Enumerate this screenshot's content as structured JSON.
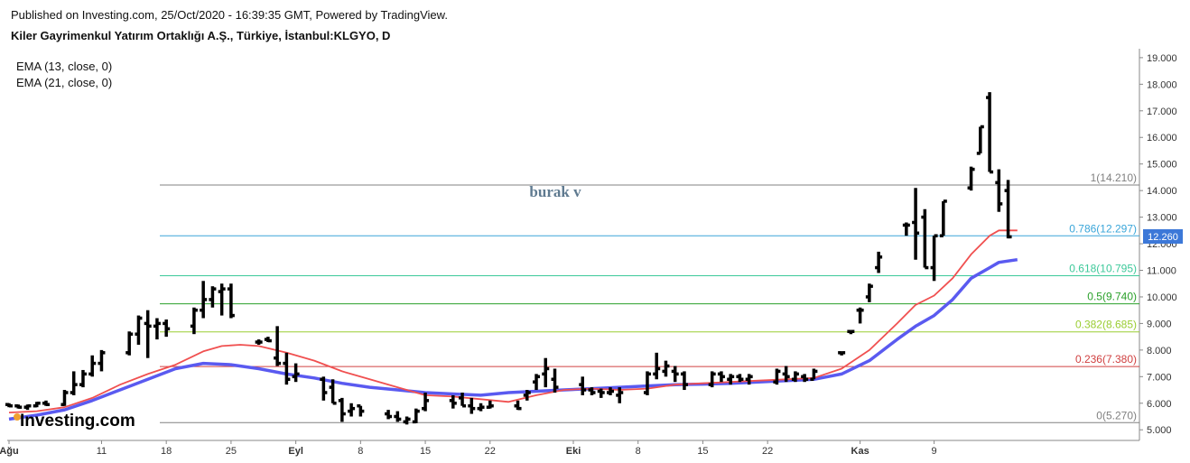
{
  "header": {
    "published": "Published on Investing.com, 25/Oct/2020 - 16:39:35 GMT, Powered by TradingView.",
    "title": "Kiler Gayrimenkul Yatırım Ortaklığı A.Ş., Türkiye, İstanbul:KLGYO, D"
  },
  "indicators": [
    "EMA (13, close, 0)",
    "EMA (21, close, 0)"
  ],
  "annotation": "burak v",
  "logo": "Investing.com",
  "last_price_label": "12.260",
  "colors": {
    "bars": "#000000",
    "ema13": "#f05050",
    "ema21": "#5a5af0",
    "price_tag": "#3c78d8",
    "fib_1": "#808080",
    "fib_0786": "#3aa6d9",
    "fib_0618": "#3dc99a",
    "fib_05": "#2aa02a",
    "fib_0382": "#9acd32",
    "fib_0236": "#d04040",
    "fib_0": "#808080"
  },
  "chart_data": {
    "type": "ohlc",
    "y_axis": {
      "min": 4.6,
      "max": 19.2,
      "ticks": [
        "5.000",
        "6.000",
        "7.000",
        "8.000",
        "9.000",
        "10.000",
        "11.000",
        "12.000",
        "13.000",
        "14.000",
        "15.000",
        "16.000",
        "17.000",
        "18.000",
        "19.000"
      ]
    },
    "x_axis_labels": [
      {
        "label": "Ağu",
        "bold": true,
        "day": 0
      },
      {
        "label": "11",
        "bold": false,
        "day": 10
      },
      {
        "label": "18",
        "bold": false,
        "day": 17
      },
      {
        "label": "25",
        "bold": false,
        "day": 24
      },
      {
        "label": "Eyl",
        "bold": true,
        "day": 31
      },
      {
        "label": "8",
        "bold": false,
        "day": 38
      },
      {
        "label": "15",
        "bold": false,
        "day": 45
      },
      {
        "label": "22",
        "bold": false,
        "day": 52
      },
      {
        "label": "Eki",
        "bold": true,
        "day": 61
      },
      {
        "label": "8",
        "bold": false,
        "day": 68
      },
      {
        "label": "15",
        "bold": false,
        "day": 75
      },
      {
        "label": "22",
        "bold": false,
        "day": 82
      },
      {
        "label": "Kas",
        "bold": true,
        "day": 92
      },
      {
        "label": "9",
        "bold": false,
        "day": 100
      }
    ],
    "fib_levels": [
      {
        "ratio": "1",
        "value": 14.21,
        "label": "1(14.210)",
        "color_key": "fib_1"
      },
      {
        "ratio": "0.786",
        "value": 12.297,
        "label": "0.786(12.297)",
        "color_key": "fib_0786"
      },
      {
        "ratio": "0.618",
        "value": 10.795,
        "label": "0.618(10.795)",
        "color_key": "fib_0618"
      },
      {
        "ratio": "0.5",
        "value": 9.74,
        "label": "0.5(9.740)",
        "color_key": "fib_05"
      },
      {
        "ratio": "0.382",
        "value": 8.685,
        "label": "0.382(8.685)",
        "color_key": "fib_0382"
      },
      {
        "ratio": "0.236",
        "value": 7.38,
        "label": "0.236(7.380)",
        "color_key": "fib_0236"
      },
      {
        "ratio": "0",
        "value": 5.27,
        "label": "0(5.270)",
        "color_key": "fib_0"
      }
    ],
    "bars": [
      {
        "day": 0,
        "o": 5.95,
        "h": 6.0,
        "l": 5.85,
        "c": 5.9
      },
      {
        "day": 1,
        "o": 5.9,
        "h": 5.95,
        "l": 5.8,
        "c": 5.85
      },
      {
        "day": 2,
        "o": 5.85,
        "h": 5.95,
        "l": 5.75,
        "c": 5.9
      },
      {
        "day": 3,
        "o": 5.9,
        "h": 6.05,
        "l": 5.85,
        "c": 6.0
      },
      {
        "day": 4,
        "o": 6.0,
        "h": 6.1,
        "l": 5.9,
        "c": 5.95
      },
      {
        "day": 6,
        "o": 5.95,
        "h": 6.5,
        "l": 5.9,
        "c": 6.4
      },
      {
        "day": 7,
        "o": 6.4,
        "h": 7.2,
        "l": 6.3,
        "c": 6.7
      },
      {
        "day": 8,
        "o": 6.7,
        "h": 7.25,
        "l": 6.6,
        "c": 7.1
      },
      {
        "day": 9,
        "o": 7.1,
        "h": 7.8,
        "l": 7.0,
        "c": 7.5
      },
      {
        "day": 10,
        "o": 7.5,
        "h": 8.0,
        "l": 7.2,
        "c": 7.9
      },
      {
        "day": 13,
        "o": 7.9,
        "h": 8.7,
        "l": 7.8,
        "c": 8.6
      },
      {
        "day": 14,
        "o": 8.6,
        "h": 9.3,
        "l": 8.2,
        "c": 9.2
      },
      {
        "day": 15,
        "o": 9.0,
        "h": 9.5,
        "l": 7.7,
        "c": 8.9
      },
      {
        "day": 16,
        "o": 8.9,
        "h": 9.2,
        "l": 8.4,
        "c": 9.0
      },
      {
        "day": 17,
        "o": 9.0,
        "h": 9.15,
        "l": 8.5,
        "c": 8.8
      },
      {
        "day": 20,
        "o": 8.9,
        "h": 9.6,
        "l": 8.6,
        "c": 9.5
      },
      {
        "day": 21,
        "o": 9.5,
        "h": 10.6,
        "l": 9.2,
        "c": 9.9
      },
      {
        "day": 22,
        "o": 9.9,
        "h": 10.4,
        "l": 9.6,
        "c": 10.3
      },
      {
        "day": 23,
        "o": 10.2,
        "h": 10.5,
        "l": 9.3,
        "c": 10.3
      },
      {
        "day": 24,
        "o": 10.3,
        "h": 10.5,
        "l": 9.2,
        "c": 9.3
      },
      {
        "day": 27,
        "o": 8.3,
        "h": 8.4,
        "l": 8.2,
        "c": 8.3
      },
      {
        "day": 28,
        "o": 8.4,
        "h": 8.5,
        "l": 8.3,
        "c": 8.35
      },
      {
        "day": 29,
        "o": 7.7,
        "h": 8.9,
        "l": 7.4,
        "c": 7.5
      },
      {
        "day": 30,
        "o": 7.5,
        "h": 7.9,
        "l": 6.7,
        "c": 6.9
      },
      {
        "day": 31,
        "o": 7.0,
        "h": 7.5,
        "l": 6.8,
        "c": 7.1
      },
      {
        "day": 34,
        "o": 6.9,
        "h": 7.0,
        "l": 6.1,
        "c": 6.4
      },
      {
        "day": 35,
        "o": 6.6,
        "h": 6.9,
        "l": 6.0,
        "c": 6.0
      },
      {
        "day": 36,
        "o": 6.1,
        "h": 6.2,
        "l": 5.3,
        "c": 5.6
      },
      {
        "day": 37,
        "o": 5.7,
        "h": 6.0,
        "l": 5.5,
        "c": 5.8
      },
      {
        "day": 38,
        "o": 5.9,
        "h": 5.9,
        "l": 5.5,
        "c": 5.7
      },
      {
        "day": 41,
        "o": 5.6,
        "h": 5.75,
        "l": 5.4,
        "c": 5.5
      },
      {
        "day": 42,
        "o": 5.5,
        "h": 5.7,
        "l": 5.3,
        "c": 5.4
      },
      {
        "day": 43,
        "o": 5.3,
        "h": 5.5,
        "l": 5.2,
        "c": 5.4
      },
      {
        "day": 44,
        "o": 5.3,
        "h": 5.8,
        "l": 5.25,
        "c": 5.7
      },
      {
        "day": 45,
        "o": 5.8,
        "h": 6.4,
        "l": 5.7,
        "c": 6.1
      },
      {
        "day": 48,
        "o": 6.1,
        "h": 6.3,
        "l": 5.8,
        "c": 6.0
      },
      {
        "day": 49,
        "o": 6.2,
        "h": 6.4,
        "l": 5.9,
        "c": 5.9
      },
      {
        "day": 50,
        "o": 5.9,
        "h": 6.2,
        "l": 5.6,
        "c": 5.8
      },
      {
        "day": 51,
        "o": 5.8,
        "h": 6.0,
        "l": 5.7,
        "c": 5.85
      },
      {
        "day": 52,
        "o": 5.85,
        "h": 6.1,
        "l": 5.8,
        "c": 5.9
      },
      {
        "day": 55,
        "o": 5.9,
        "h": 6.1,
        "l": 5.75,
        "c": 5.8
      },
      {
        "day": 56,
        "o": 6.3,
        "h": 6.5,
        "l": 6.1,
        "c": 6.4
      },
      {
        "day": 57,
        "o": 6.8,
        "h": 7.1,
        "l": 6.5,
        "c": 7.0
      },
      {
        "day": 58,
        "o": 7.1,
        "h": 7.7,
        "l": 6.6,
        "c": 7.3
      },
      {
        "day": 59,
        "o": 6.9,
        "h": 7.3,
        "l": 6.4,
        "c": 6.6
      },
      {
        "day": 62,
        "o": 6.7,
        "h": 7.0,
        "l": 6.3,
        "c": 6.5
      },
      {
        "day": 63,
        "o": 6.5,
        "h": 6.6,
        "l": 6.3,
        "c": 6.4
      },
      {
        "day": 64,
        "o": 6.45,
        "h": 6.55,
        "l": 6.2,
        "c": 6.4
      },
      {
        "day": 65,
        "o": 6.4,
        "h": 6.6,
        "l": 6.3,
        "c": 6.45
      },
      {
        "day": 66,
        "o": 6.3,
        "h": 6.6,
        "l": 6.0,
        "c": 6.4
      },
      {
        "day": 69,
        "o": 6.4,
        "h": 7.2,
        "l": 6.3,
        "c": 7.1
      },
      {
        "day": 70,
        "o": 7.1,
        "h": 7.9,
        "l": 6.9,
        "c": 7.3
      },
      {
        "day": 71,
        "o": 7.2,
        "h": 7.6,
        "l": 7.0,
        "c": 7.4
      },
      {
        "day": 72,
        "o": 7.2,
        "h": 7.4,
        "l": 6.8,
        "c": 7.1
      },
      {
        "day": 73,
        "o": 7.1,
        "h": 7.2,
        "l": 6.5,
        "c": 6.7
      },
      {
        "day": 76,
        "o": 6.7,
        "h": 7.2,
        "l": 6.6,
        "c": 7.1
      },
      {
        "day": 77,
        "o": 7.1,
        "h": 7.2,
        "l": 6.8,
        "c": 7.0
      },
      {
        "day": 78,
        "o": 6.9,
        "h": 7.1,
        "l": 6.7,
        "c": 7.0
      },
      {
        "day": 79,
        "o": 7.0,
        "h": 7.1,
        "l": 6.8,
        "c": 6.9
      },
      {
        "day": 80,
        "o": 6.9,
        "h": 7.1,
        "l": 6.7,
        "c": 7.0
      },
      {
        "day": 83,
        "o": 6.8,
        "h": 7.3,
        "l": 6.7,
        "c": 7.2
      },
      {
        "day": 84,
        "o": 7.1,
        "h": 7.4,
        "l": 6.8,
        "c": 7.0
      },
      {
        "day": 85,
        "o": 6.9,
        "h": 7.2,
        "l": 6.8,
        "c": 7.1
      },
      {
        "day": 86,
        "o": 7.0,
        "h": 7.1,
        "l": 6.8,
        "c": 6.9
      },
      {
        "day": 87,
        "o": 6.9,
        "h": 7.3,
        "l": 6.9,
        "c": 7.2
      },
      {
        "day": 90,
        "o": 7.9,
        "h": 7.9,
        "l": 7.9,
        "c": 7.9
      },
      {
        "day": 91,
        "o": 8.7,
        "h": 8.7,
        "l": 8.7,
        "c": 8.7
      },
      {
        "day": 92,
        "o": 9.5,
        "h": 9.6,
        "l": 9.0,
        "c": 9.5
      },
      {
        "day": 93,
        "o": 10.0,
        "h": 10.5,
        "l": 9.8,
        "c": 10.4
      },
      {
        "day": 94,
        "o": 11.1,
        "h": 11.7,
        "l": 10.9,
        "c": 11.5
      },
      {
        "day": 97,
        "o": 12.7,
        "h": 12.8,
        "l": 12.3,
        "c": 12.7
      },
      {
        "day": 98,
        "o": 12.8,
        "h": 14.1,
        "l": 11.4,
        "c": 12.4
      },
      {
        "day": 99,
        "o": 13.0,
        "h": 13.3,
        "l": 11.1,
        "c": 11.1
      },
      {
        "day": 100,
        "o": 11.1,
        "h": 12.3,
        "l": 10.6,
        "c": 12.3
      },
      {
        "day": 101,
        "o": 12.3,
        "h": 13.6,
        "l": 12.3,
        "c": 13.6
      },
      {
        "day": 104,
        "o": 14.1,
        "h": 14.9,
        "l": 14.0,
        "c": 14.8
      },
      {
        "day": 105,
        "o": 15.4,
        "h": 16.4,
        "l": 15.4,
        "c": 16.4
      },
      {
        "day": 106,
        "o": 17.5,
        "h": 17.7,
        "l": 14.7,
        "c": 14.7
      },
      {
        "day": 107,
        "o": 14.3,
        "h": 14.8,
        "l": 13.2,
        "c": 13.5
      },
      {
        "day": 108,
        "o": 14.0,
        "h": 14.4,
        "l": 12.2,
        "c": 12.26
      }
    ],
    "ema13": [
      [
        0,
        5.65
      ],
      [
        3,
        5.7
      ],
      [
        6,
        5.85
      ],
      [
        9,
        6.2
      ],
      [
        12,
        6.7
      ],
      [
        15,
        7.1
      ],
      [
        18,
        7.45
      ],
      [
        21,
        7.95
      ],
      [
        23,
        8.15
      ],
      [
        25,
        8.2
      ],
      [
        27,
        8.15
      ],
      [
        30,
        7.9
      ],
      [
        33,
        7.6
      ],
      [
        36,
        7.2
      ],
      [
        39,
        6.9
      ],
      [
        42,
        6.6
      ],
      [
        45,
        6.3
      ],
      [
        48,
        6.25
      ],
      [
        51,
        6.15
      ],
      [
        54,
        6.05
      ],
      [
        57,
        6.3
      ],
      [
        60,
        6.5
      ],
      [
        63,
        6.55
      ],
      [
        66,
        6.5
      ],
      [
        69,
        6.55
      ],
      [
        72,
        6.7
      ],
      [
        75,
        6.75
      ],
      [
        78,
        6.8
      ],
      [
        81,
        6.85
      ],
      [
        84,
        6.9
      ],
      [
        87,
        6.95
      ],
      [
        90,
        7.3
      ],
      [
        93,
        8.0
      ],
      [
        96,
        9.0
      ],
      [
        98,
        9.7
      ],
      [
        100,
        10.05
      ],
      [
        102,
        10.7
      ],
      [
        104,
        11.6
      ],
      [
        106,
        12.3
      ],
      [
        107,
        12.5
      ],
      [
        109,
        12.5
      ]
    ],
    "ema21": [
      [
        0,
        5.4
      ],
      [
        3,
        5.55
      ],
      [
        6,
        5.75
      ],
      [
        9,
        6.1
      ],
      [
        12,
        6.5
      ],
      [
        15,
        6.9
      ],
      [
        18,
        7.3
      ],
      [
        21,
        7.5
      ],
      [
        24,
        7.45
      ],
      [
        27,
        7.3
      ],
      [
        30,
        7.1
      ],
      [
        33,
        6.95
      ],
      [
        36,
        6.75
      ],
      [
        39,
        6.6
      ],
      [
        42,
        6.5
      ],
      [
        45,
        6.4
      ],
      [
        48,
        6.35
      ],
      [
        51,
        6.3
      ],
      [
        54,
        6.4
      ],
      [
        57,
        6.45
      ],
      [
        60,
        6.5
      ],
      [
        63,
        6.55
      ],
      [
        66,
        6.6
      ],
      [
        69,
        6.65
      ],
      [
        72,
        6.7
      ],
      [
        75,
        6.72
      ],
      [
        78,
        6.75
      ],
      [
        81,
        6.8
      ],
      [
        84,
        6.85
      ],
      [
        87,
        6.9
      ],
      [
        90,
        7.1
      ],
      [
        93,
        7.6
      ],
      [
        96,
        8.4
      ],
      [
        98,
        8.9
      ],
      [
        100,
        9.3
      ],
      [
        102,
        9.9
      ],
      [
        104,
        10.7
      ],
      [
        106,
        11.1
      ],
      [
        107,
        11.3
      ],
      [
        109,
        11.4
      ]
    ]
  }
}
